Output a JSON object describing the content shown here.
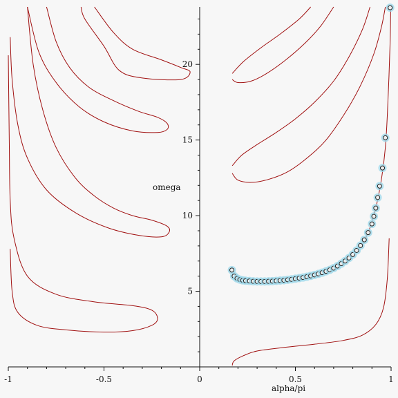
{
  "chart_data": {
    "type": "line",
    "title": "",
    "xlabel": "alpha/pi",
    "ylabel": "omega",
    "xlim": [
      -1,
      1
    ],
    "ylim": [
      0,
      23.8
    ],
    "grid": false,
    "x_ticks": [
      -1,
      -0.5,
      0,
      0.5,
      1
    ],
    "x_tick_labels": [
      "-1",
      "-0.5",
      "0",
      "0.5",
      "1"
    ],
    "y_ticks": [
      5,
      10,
      15,
      20
    ],
    "y_tick_labels": [
      "5",
      "10",
      "15",
      "20"
    ],
    "series": [
      {
        "kind": "curve",
        "points": [
          [
            -0.99,
            7.8
          ],
          [
            -0.98,
            5.0
          ],
          [
            -0.95,
            3.6
          ],
          [
            -0.85,
            2.75
          ],
          [
            -0.7,
            2.45
          ],
          [
            -0.5,
            2.3
          ],
          [
            -0.35,
            2.4
          ],
          [
            -0.25,
            2.75
          ],
          [
            -0.22,
            3.2
          ],
          [
            -0.25,
            3.75
          ],
          [
            -0.35,
            4.05
          ],
          [
            -0.55,
            4.3
          ],
          [
            -0.75,
            4.8
          ],
          [
            -0.9,
            6.0
          ],
          [
            -0.97,
            8.5
          ],
          [
            -0.99,
            11.0
          ],
          [
            -0.995,
            15.0
          ],
          [
            -1.0,
            20.6
          ]
        ]
      },
      {
        "kind": "curve",
        "points": [
          [
            -0.9,
            23.8
          ],
          [
            -0.87,
            20.0
          ],
          [
            -0.82,
            17.0
          ],
          [
            -0.75,
            14.5
          ],
          [
            -0.65,
            12.5
          ],
          [
            -0.55,
            11.3
          ],
          [
            -0.45,
            10.5
          ],
          [
            -0.35,
            10.0
          ],
          [
            -0.25,
            9.7
          ],
          [
            -0.17,
            9.3
          ],
          [
            -0.16,
            8.9
          ],
          [
            -0.2,
            8.6
          ],
          [
            -0.32,
            8.7
          ],
          [
            -0.48,
            9.2
          ],
          [
            -0.65,
            10.2
          ],
          [
            -0.8,
            11.7
          ],
          [
            -0.9,
            13.8
          ],
          [
            -0.95,
            16.0
          ],
          [
            -0.98,
            19.0
          ],
          [
            -0.99,
            21.8
          ]
        ]
      },
      {
        "kind": "curve",
        "points": [
          [
            -0.8,
            23.8
          ],
          [
            -0.75,
            21.5
          ],
          [
            -0.68,
            19.8
          ],
          [
            -0.58,
            18.5
          ],
          [
            -0.45,
            17.6
          ],
          [
            -0.32,
            16.9
          ],
          [
            -0.22,
            16.5
          ],
          [
            -0.17,
            16.1
          ],
          [
            -0.17,
            15.7
          ],
          [
            -0.22,
            15.5
          ],
          [
            -0.35,
            15.6
          ],
          [
            -0.5,
            16.2
          ],
          [
            -0.63,
            17.2
          ],
          [
            -0.75,
            18.8
          ],
          [
            -0.84,
            20.8
          ],
          [
            -0.9,
            23.8
          ]
        ]
      },
      {
        "kind": "curve",
        "points": [
          [
            -0.55,
            23.8
          ],
          [
            -0.45,
            22.1
          ],
          [
            -0.35,
            21.0
          ],
          [
            -0.2,
            20.3
          ],
          [
            -0.1,
            19.8
          ],
          [
            -0.05,
            19.5
          ],
          [
            -0.1,
            19.0
          ],
          [
            -0.3,
            19.1
          ],
          [
            -0.42,
            19.6
          ],
          [
            -0.5,
            21.2
          ],
          [
            -0.6,
            23.0
          ],
          [
            -0.62,
            23.8
          ]
        ]
      },
      {
        "kind": "curve",
        "points": [
          [
            0.17,
            0.1
          ],
          [
            0.18,
            0.4
          ],
          [
            0.23,
            0.75
          ],
          [
            0.3,
            1.05
          ],
          [
            0.45,
            1.3
          ],
          [
            0.6,
            1.5
          ],
          [
            0.75,
            1.75
          ],
          [
            0.85,
            2.1
          ],
          [
            0.92,
            2.8
          ],
          [
            0.96,
            3.9
          ],
          [
            0.98,
            5.8
          ],
          [
            0.99,
            8.5
          ]
        ]
      },
      {
        "kind": "curve",
        "points": [
          [
            0.17,
            6.3
          ],
          [
            0.18,
            5.9
          ],
          [
            0.22,
            5.75
          ],
          [
            0.3,
            5.65
          ],
          [
            0.4,
            5.68
          ],
          [
            0.5,
            5.8
          ],
          [
            0.6,
            6.0
          ],
          [
            0.7,
            6.45
          ],
          [
            0.78,
            7.1
          ],
          [
            0.85,
            8.1
          ],
          [
            0.9,
            9.6
          ],
          [
            0.94,
            11.7
          ],
          [
            0.97,
            14.5
          ],
          [
            0.985,
            18.0
          ],
          [
            0.995,
            21.5
          ],
          [
            0.998,
            23.8
          ]
        ]
      },
      {
        "kind": "curve",
        "points": [
          [
            0.17,
            12.8
          ],
          [
            0.2,
            12.35
          ],
          [
            0.27,
            12.2
          ],
          [
            0.36,
            12.4
          ],
          [
            0.46,
            12.9
          ],
          [
            0.56,
            13.8
          ],
          [
            0.66,
            15.0
          ],
          [
            0.76,
            16.8
          ],
          [
            0.84,
            18.6
          ],
          [
            0.91,
            20.7
          ],
          [
            0.95,
            22.5
          ],
          [
            0.97,
            23.8
          ]
        ]
      },
      {
        "kind": "curve",
        "points": [
          [
            0.17,
            13.3
          ],
          [
            0.22,
            14.0
          ],
          [
            0.3,
            14.7
          ],
          [
            0.4,
            15.5
          ],
          [
            0.5,
            16.4
          ],
          [
            0.6,
            17.5
          ],
          [
            0.7,
            18.9
          ],
          [
            0.78,
            20.5
          ],
          [
            0.85,
            22.3
          ],
          [
            0.89,
            23.8
          ]
        ]
      },
      {
        "kind": "curve",
        "points": [
          [
            0.17,
            19.0
          ],
          [
            0.2,
            18.8
          ],
          [
            0.27,
            18.9
          ],
          [
            0.35,
            19.4
          ],
          [
            0.45,
            20.3
          ],
          [
            0.55,
            21.4
          ],
          [
            0.63,
            22.5
          ],
          [
            0.7,
            23.8
          ]
        ]
      },
      {
        "kind": "curve",
        "points": [
          [
            0.17,
            19.4
          ],
          [
            0.23,
            20.2
          ],
          [
            0.32,
            21.1
          ],
          [
            0.42,
            22.0
          ],
          [
            0.52,
            23.0
          ],
          [
            0.58,
            23.8
          ]
        ]
      },
      {
        "kind": "markers",
        "points": [
          [
            0.168,
            6.4
          ],
          [
            0.18,
            6.0
          ],
          [
            0.195,
            5.85
          ],
          [
            0.21,
            5.77
          ],
          [
            0.225,
            5.72
          ],
          [
            0.24,
            5.7
          ],
          [
            0.26,
            5.68
          ],
          [
            0.28,
            5.66
          ],
          [
            0.3,
            5.65
          ],
          [
            0.32,
            5.65
          ],
          [
            0.34,
            5.65
          ],
          [
            0.36,
            5.66
          ],
          [
            0.38,
            5.67
          ],
          [
            0.4,
            5.69
          ],
          [
            0.42,
            5.71
          ],
          [
            0.44,
            5.73
          ],
          [
            0.46,
            5.76
          ],
          [
            0.48,
            5.79
          ],
          [
            0.5,
            5.83
          ],
          [
            0.52,
            5.87
          ],
          [
            0.54,
            5.91
          ],
          [
            0.56,
            5.96
          ],
          [
            0.58,
            6.02
          ],
          [
            0.6,
            6.08
          ],
          [
            0.62,
            6.15
          ],
          [
            0.64,
            6.23
          ],
          [
            0.66,
            6.32
          ],
          [
            0.68,
            6.42
          ],
          [
            0.7,
            6.53
          ],
          [
            0.72,
            6.67
          ],
          [
            0.74,
            6.83
          ],
          [
            0.76,
            7.0
          ],
          [
            0.78,
            7.2
          ],
          [
            0.8,
            7.43
          ],
          [
            0.82,
            7.7
          ],
          [
            0.84,
            8.02
          ],
          [
            0.86,
            8.4
          ],
          [
            0.88,
            8.88
          ],
          [
            0.9,
            9.45
          ],
          [
            0.91,
            9.95
          ],
          [
            0.92,
            10.5
          ],
          [
            0.93,
            11.2
          ],
          [
            0.94,
            11.95
          ],
          [
            0.955,
            13.15
          ],
          [
            0.97,
            15.15
          ],
          [
            0.995,
            23.75
          ]
        ]
      }
    ]
  }
}
